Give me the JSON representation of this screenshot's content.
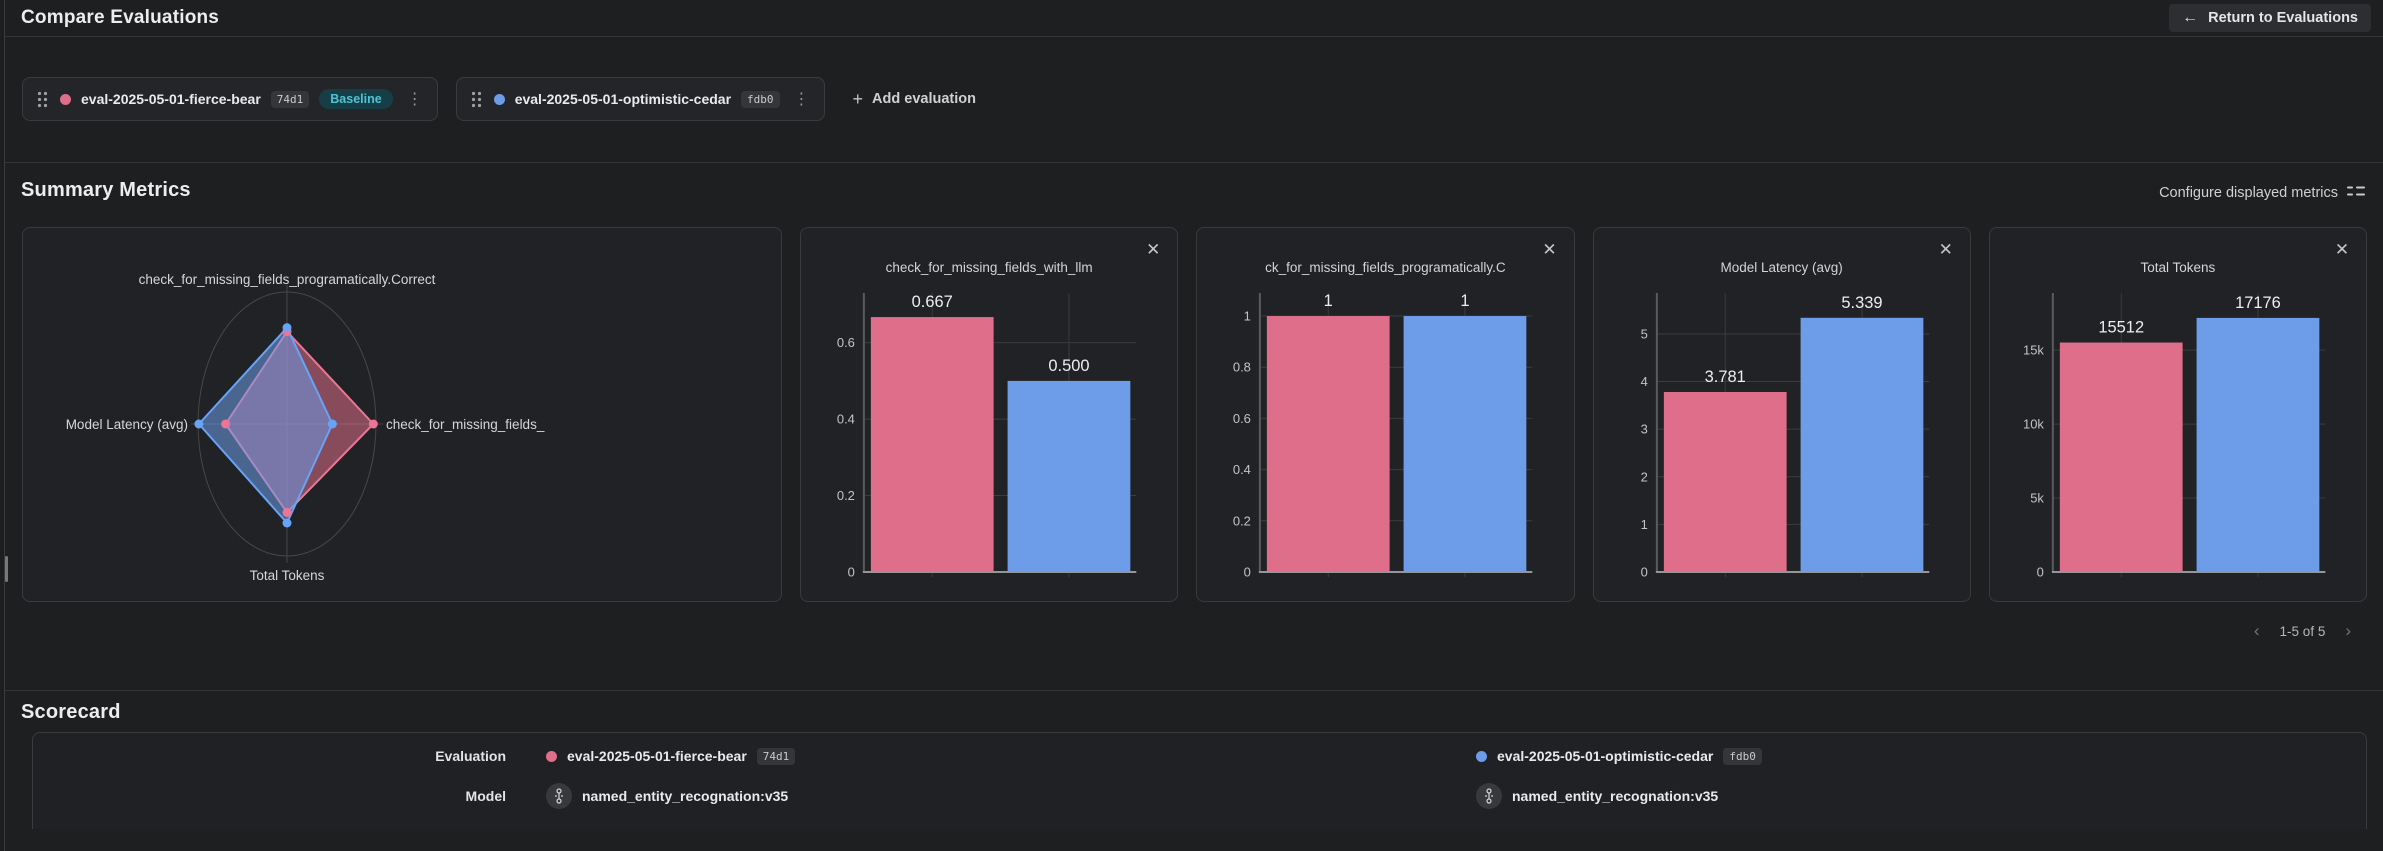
{
  "page": {
    "title": "Compare Evaluations"
  },
  "header": {
    "return_button_label": "Return to Evaluations"
  },
  "icons": {
    "back": "←",
    "close": "✕",
    "plus": "+",
    "kebab": "⋮",
    "prev": "‹",
    "next": "›"
  },
  "evaluations": [
    {
      "name": "eval-2025-05-01-fierce-bear",
      "hash": "74d1",
      "color": "#df6e8b",
      "stroke": "#ec7595",
      "baseline_label": "Baseline"
    },
    {
      "name": "eval-2025-05-01-optimistic-cedar",
      "hash": "fdb0",
      "color": "#6d9ce9",
      "stroke": "#67a3f7"
    }
  ],
  "toolbar": {
    "add_evaluation_label": "Add evaluation"
  },
  "summary": {
    "heading": "Summary Metrics",
    "configure_label": "Configure displayed metrics",
    "pagination_label": "1-5 of 5"
  },
  "chart_data": [
    {
      "type": "radar",
      "axes": [
        "check_for_missing_fields_programatically.Correct",
        "check_for_missing_fields_",
        "Total Tokens",
        "Model Latency (avg)"
      ],
      "axis_order": "top, right, bottom, left",
      "series": [
        {
          "name": "eval-2025-05-01-fierce-bear",
          "color": "#df6e8b",
          "values_normalized": [
            0.7,
            0.97,
            0.67,
            0.69
          ]
        },
        {
          "name": "eval-2025-05-01-optimistic-cedar",
          "color": "#6d9ce9",
          "values_normalized": [
            0.73,
            0.51,
            0.75,
            0.99
          ]
        }
      ]
    },
    {
      "type": "bar",
      "title": "check_for_missing_fields_with_llm",
      "categories": [
        "eval-2025-05-01-fierce-bear",
        "eval-2025-05-01-optimistic-cedar"
      ],
      "values": [
        0.667,
        0.5
      ],
      "value_labels": [
        "0.667",
        "0.500"
      ],
      "ylim": [
        0,
        0.73
      ],
      "yticks": [
        0,
        0.2,
        0.4,
        0.6
      ],
      "ytick_labels": [
        "0",
        "0.2",
        "0.4",
        "0.6"
      ]
    },
    {
      "type": "bar",
      "title": "ck_for_missing_fields_programatically.C",
      "categories": [
        "eval-2025-05-01-fierce-bear",
        "eval-2025-05-01-optimistic-cedar"
      ],
      "values": [
        1,
        1
      ],
      "value_labels": [
        "1",
        "1"
      ],
      "ylim": [
        0,
        1.09
      ],
      "yticks": [
        0,
        0.2,
        0.4,
        0.6,
        0.8,
        1
      ],
      "ytick_labels": [
        "0",
        "0.2",
        "0.4",
        "0.6",
        "0.8",
        "1"
      ]
    },
    {
      "type": "bar",
      "title": "Model Latency (avg)",
      "categories": [
        "eval-2025-05-01-fierce-bear",
        "eval-2025-05-01-optimistic-cedar"
      ],
      "values": [
        3.781,
        5.339
      ],
      "value_labels": [
        "3.781",
        "5.339"
      ],
      "ylim": [
        0,
        5.86
      ],
      "yticks": [
        0,
        1,
        2,
        3,
        4,
        5
      ],
      "ytick_labels": [
        "0",
        "1",
        "2",
        "3",
        "4",
        "5"
      ]
    },
    {
      "type": "bar",
      "title": "Total Tokens",
      "categories": [
        "eval-2025-05-01-fierce-bear",
        "eval-2025-05-01-optimistic-cedar"
      ],
      "values": [
        15512,
        17176
      ],
      "value_labels": [
        "15512",
        "17176"
      ],
      "ylim": [
        0,
        18860
      ],
      "yticks": [
        0,
        5000,
        10000,
        15000
      ],
      "ytick_labels": [
        "0",
        "5k",
        "10k",
        "15k"
      ]
    }
  ],
  "scorecard": {
    "heading": "Scorecard",
    "row_labels": [
      "Evaluation",
      "Model"
    ],
    "models": [
      "named_entity_recognation:v35",
      "named_entity_recognation:v35"
    ]
  }
}
